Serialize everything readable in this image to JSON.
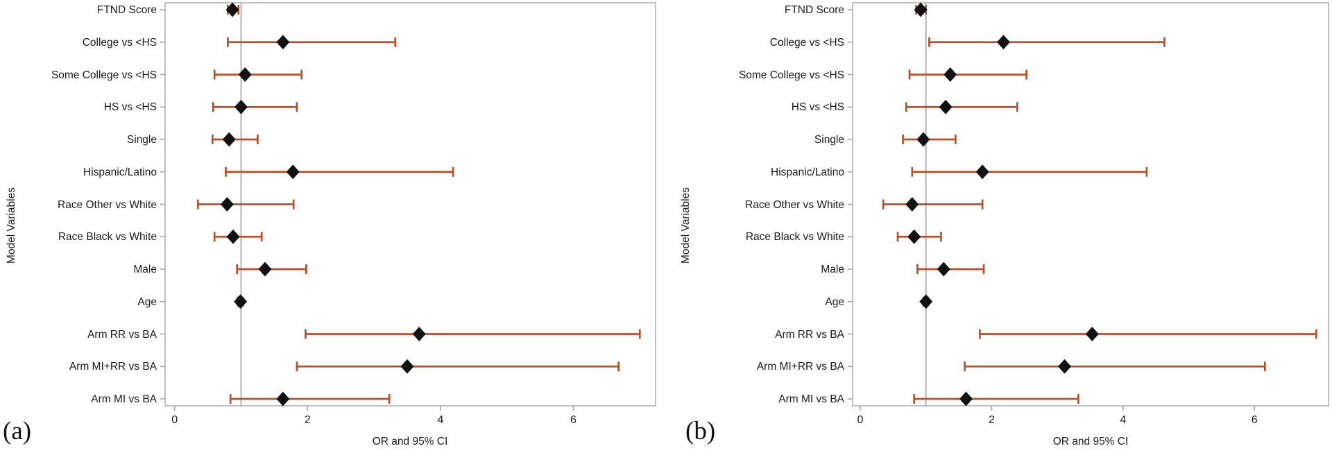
{
  "figure": {
    "background": "#ffffff",
    "colors": {
      "ci_bar": "#b5502b",
      "marker": "#121212",
      "frame": "#a6a6a6",
      "reference_line": "#9e9e9e",
      "text": "#1a1a1a"
    }
  },
  "chart_data": [
    {
      "type": "scatter",
      "variant": "forest-plot",
      "panel_label": "(a)",
      "xlabel": "OR and 95% CI",
      "ylabel": "Model Variables",
      "xlim": [
        -0.15,
        7.25
      ],
      "xticks": [
        0,
        2,
        4,
        6
      ],
      "reference_line_x": 1,
      "grid": false,
      "legend": "none",
      "marker_shape": "diamond",
      "categories": [
        "FTND Score",
        "College vs <HS",
        "Some College vs <HS",
        "HS vs <HS",
        "Single",
        "Hispanic/Latino",
        "Race Other vs White",
        "Race Black vs White",
        "Male",
        "Age",
        "Arm RR vs BA",
        "Arm MI+RR vs BA",
        "Arm MI vs BA"
      ],
      "series": [
        {
          "name": "OR and 95% CI",
          "points": [
            {
              "category": "FTND Score",
              "or": 0.87,
              "ci_low": 0.8,
              "ci_high": 0.96
            },
            {
              "category": "College vs <HS",
              "or": 1.63,
              "ci_low": 0.8,
              "ci_high": 3.32
            },
            {
              "category": "Some College vs <HS",
              "or": 1.06,
              "ci_low": 0.6,
              "ci_high": 1.91
            },
            {
              "category": "HS vs <HS",
              "or": 1.0,
              "ci_low": 0.58,
              "ci_high": 1.84
            },
            {
              "category": "Single",
              "or": 0.82,
              "ci_low": 0.57,
              "ci_high": 1.25
            },
            {
              "category": "Hispanic/Latino",
              "or": 1.78,
              "ci_low": 0.77,
              "ci_high": 4.19
            },
            {
              "category": "Race Other vs White",
              "or": 0.79,
              "ci_low": 0.35,
              "ci_high": 1.79
            },
            {
              "category": "Race Black vs White",
              "or": 0.88,
              "ci_low": 0.6,
              "ci_high": 1.31
            },
            {
              "category": "Male",
              "or": 1.36,
              "ci_low": 0.94,
              "ci_high": 1.98
            },
            {
              "category": "Age",
              "or": 0.99,
              "ci_low": 0.95,
              "ci_high": 1.03
            },
            {
              "category": "Arm RR vs BA",
              "or": 3.68,
              "ci_low": 1.97,
              "ci_high": 7.0
            },
            {
              "category": "Arm MI+RR vs BA",
              "or": 3.5,
              "ci_low": 1.84,
              "ci_high": 6.68
            },
            {
              "category": "Arm MI vs BA",
              "or": 1.63,
              "ci_low": 0.84,
              "ci_high": 3.23
            }
          ]
        }
      ]
    },
    {
      "type": "scatter",
      "variant": "forest-plot",
      "panel_label": "(b)",
      "xlabel": "OR and 95% CI",
      "ylabel": "Model Variables",
      "xlim": [
        -0.15,
        7.15
      ],
      "xticks": [
        0,
        2,
        4,
        6
      ],
      "reference_line_x": 1,
      "grid": false,
      "legend": "none",
      "marker_shape": "diamond",
      "categories": [
        "FTND Score",
        "College vs <HS",
        "Some College vs <HS",
        "HS vs <HS",
        "Single",
        "Hispanic/Latino",
        "Race Other vs White",
        "Race Black vs White",
        "Male",
        "Age",
        "Arm RR vs BA",
        "Arm MI+RR vs BA",
        "Arm MI vs BA"
      ],
      "series": [
        {
          "name": "OR and 95% CI",
          "points": [
            {
              "category": "FTND Score",
              "or": 0.92,
              "ci_low": 0.85,
              "ci_high": 1.0
            },
            {
              "category": "College vs <HS",
              "or": 2.18,
              "ci_low": 1.05,
              "ci_high": 4.63
            },
            {
              "category": "Some College vs <HS",
              "or": 1.37,
              "ci_low": 0.75,
              "ci_high": 2.53
            },
            {
              "category": "HS vs <HS",
              "or": 1.3,
              "ci_low": 0.7,
              "ci_high": 2.39
            },
            {
              "category": "Single",
              "or": 0.96,
              "ci_low": 0.65,
              "ci_high": 1.45
            },
            {
              "category": "Hispanic/Latino",
              "or": 1.86,
              "ci_low": 0.79,
              "ci_high": 4.36
            },
            {
              "category": "Race Other vs White",
              "or": 0.79,
              "ci_low": 0.35,
              "ci_high": 1.86
            },
            {
              "category": "Race Black vs White",
              "or": 0.82,
              "ci_low": 0.57,
              "ci_high": 1.23
            },
            {
              "category": "Male",
              "or": 1.27,
              "ci_low": 0.87,
              "ci_high": 1.88
            },
            {
              "category": "Age",
              "or": 1.0,
              "ci_low": 0.96,
              "ci_high": 1.03
            },
            {
              "category": "Arm RR vs BA",
              "or": 3.53,
              "ci_low": 1.82,
              "ci_high": 6.94
            },
            {
              "category": "Arm MI+RR vs BA",
              "or": 3.11,
              "ci_low": 1.59,
              "ci_high": 6.16
            },
            {
              "category": "Arm MI vs BA",
              "or": 1.61,
              "ci_low": 0.82,
              "ci_high": 3.32
            }
          ]
        }
      ]
    }
  ]
}
